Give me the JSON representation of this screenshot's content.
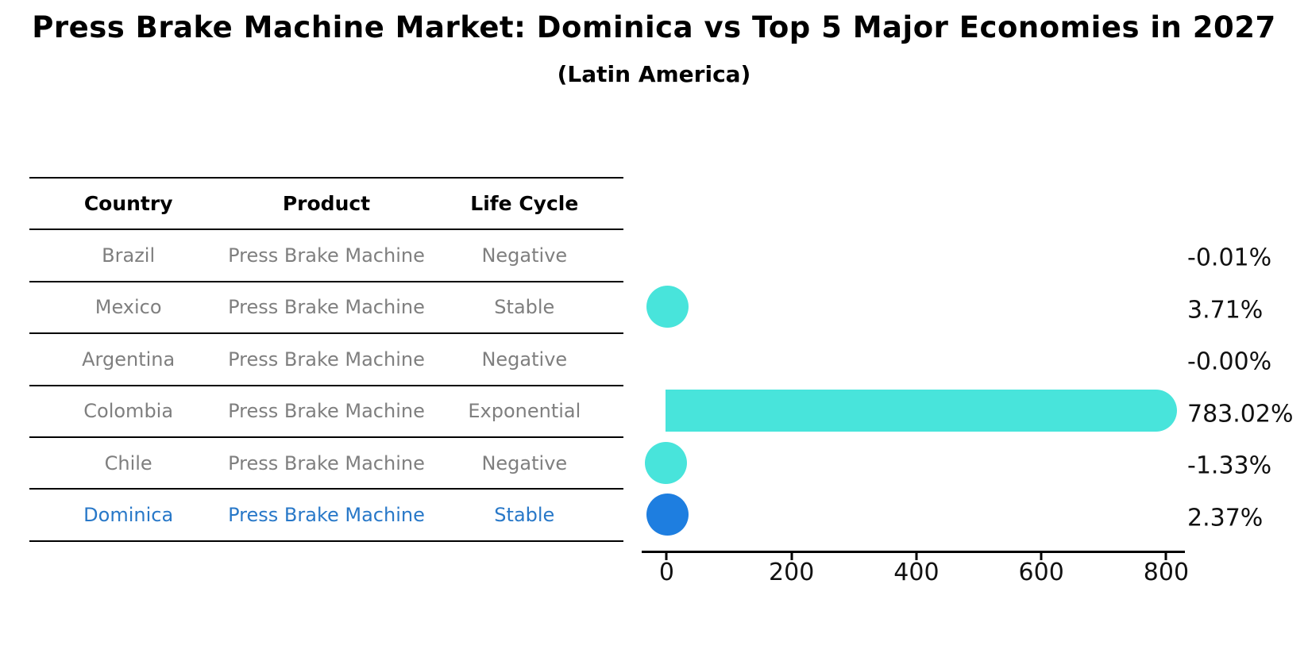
{
  "title": "Press Brake Machine Market: Dominica vs Top 5 Major Economies in 2027",
  "subtitle": "(Latin America)",
  "colors": {
    "bar_cyan": "#48e4db",
    "highlight_blue": "#1e7ee0",
    "highlight_text_blue": "#2878c8",
    "table_text_gray": "#7f7f7f",
    "axis_black": "#000000"
  },
  "table": {
    "headers": [
      "Country",
      "Product",
      "Life Cycle"
    ],
    "rows": [
      {
        "country": "Brazil",
        "product": "Press Brake Machine",
        "life_cycle": "Negative",
        "highlight": false
      },
      {
        "country": "Mexico",
        "product": "Press Brake Machine",
        "life_cycle": "Stable",
        "highlight": false
      },
      {
        "country": "Argentina",
        "product": "Press Brake Machine",
        "life_cycle": "Negative",
        "highlight": false
      },
      {
        "country": "Colombia",
        "product": "Press Brake Machine",
        "life_cycle": "Exponential",
        "highlight": false
      },
      {
        "country": "Chile",
        "product": "Press Brake Machine",
        "life_cycle": "Negative",
        "highlight": false
      },
      {
        "country": "Dominica",
        "product": "Press Brake Machine",
        "life_cycle": "Stable",
        "highlight": true
      }
    ]
  },
  "chart_data": {
    "type": "bar",
    "orientation": "horizontal",
    "title": "Press Brake Machine Market: Dominica vs Top 5 Major Economies in 2027 (Latin America)",
    "categories": [
      "Brazil",
      "Mexico",
      "Argentina",
      "Colombia",
      "Chile",
      "Dominica"
    ],
    "values": [
      -0.01,
      3.71,
      -0.0,
      783.02,
      -1.33,
      2.37
    ],
    "value_labels": [
      "-0.01%",
      "3.71%",
      "-0.00%",
      "783.02%",
      "-1.33%",
      "2.37%"
    ],
    "units": "percent growth",
    "highlight_index": 5,
    "bar_color": "#48e4db",
    "highlight_color": "#1e7ee0",
    "x_ticks": [
      0,
      200,
      400,
      600,
      800
    ],
    "xlim": [
      -40,
      830
    ],
    "grid": false,
    "legend": false
  }
}
